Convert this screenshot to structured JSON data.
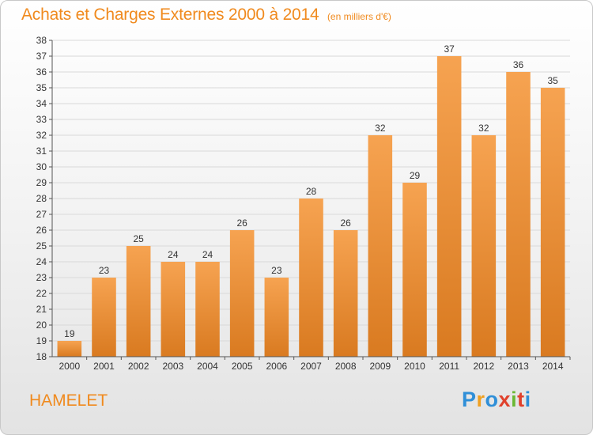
{
  "page": {
    "title": "Achats et Charges Externes 2000 à 2014",
    "unit": "(en milliers d'€)",
    "commune": "HAMELET",
    "logo_letters": [
      "P",
      "r",
      "o",
      "x",
      "i",
      "t",
      "i"
    ]
  },
  "colors": {
    "bar_light": "#f6a351",
    "bar_dark": "#d97a20",
    "title": "#f08a1e",
    "grid": "#d9d9d9"
  },
  "chart_data": {
    "type": "bar",
    "title": "Achats et Charges Externes 2000 à 2014",
    "subtitle": "(en milliers d'€)",
    "xlabel": "",
    "ylabel": "",
    "ylim": [
      18,
      38
    ],
    "grid": true,
    "categories": [
      "2000",
      "2001",
      "2002",
      "2003",
      "2004",
      "2005",
      "2006",
      "2007",
      "2008",
      "2009",
      "2010",
      "2011",
      "2012",
      "2013",
      "2014"
    ],
    "values": [
      19,
      23,
      25,
      24,
      24,
      26,
      23,
      28,
      26,
      32,
      29,
      37,
      32,
      36,
      35
    ],
    "y_ticks": [
      18,
      19,
      20,
      21,
      22,
      23,
      24,
      25,
      26,
      27,
      28,
      29,
      30,
      31,
      32,
      33,
      34,
      35,
      36,
      37,
      38
    ]
  }
}
